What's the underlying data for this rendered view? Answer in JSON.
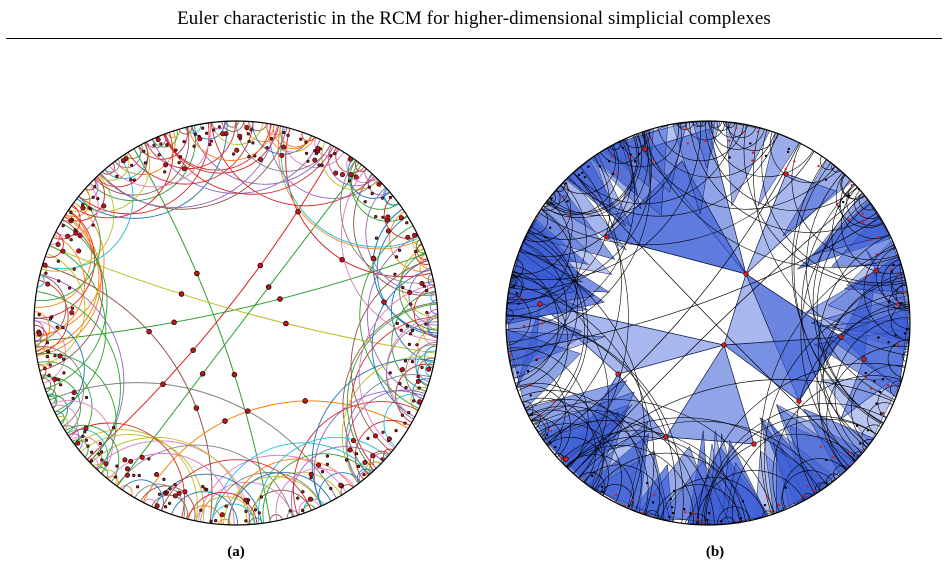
{
  "header": {
    "title": "Euler characteristic in the RCM for higher-dimensional simplicial complexes"
  },
  "figure": {
    "panels": [
      {
        "label": "(a)",
        "style": "colored-geodesics",
        "disk_color": "#000000"
      },
      {
        "label": "(b)",
        "style": "filled-simplices",
        "fill_color": "#3d5fd6",
        "node_color": "#d41d1d"
      }
    ],
    "edge_palette": [
      "#2ca02c",
      "#d62728",
      "#1f77b4",
      "#ff7f0e",
      "#9467bd",
      "#8c564b",
      "#e377c2",
      "#7f7f7f",
      "#bcbd22",
      "#17becf"
    ],
    "node_color": "#c0141a"
  }
}
